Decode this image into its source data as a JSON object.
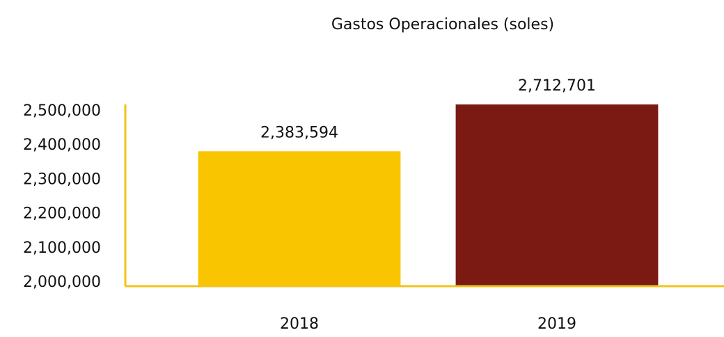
{
  "chart_data": {
    "type": "bar",
    "title": "Gastos Operacionales (soles)",
    "categories": [
      "2018",
      "2019"
    ],
    "values": [
      2383594,
      2712701
    ],
    "value_labels": [
      "2,383,594",
      "2,712,701"
    ],
    "colors": [
      "#f9c400",
      "#7b1a13"
    ],
    "axis_color": "#f2c21a",
    "ylim": [
      2000000,
      2500000
    ],
    "yticks": [
      {
        "value": 2000000,
        "label": "2,000,000"
      },
      {
        "value": 2100000,
        "label": "2,100,000"
      },
      {
        "value": 2200000,
        "label": "2,200,000"
      },
      {
        "value": 2300000,
        "label": "2,300,000"
      },
      {
        "value": 2400000,
        "label": "2,400,000"
      },
      {
        "value": 2500000,
        "label": "2,500,000"
      }
    ],
    "grid": false
  }
}
